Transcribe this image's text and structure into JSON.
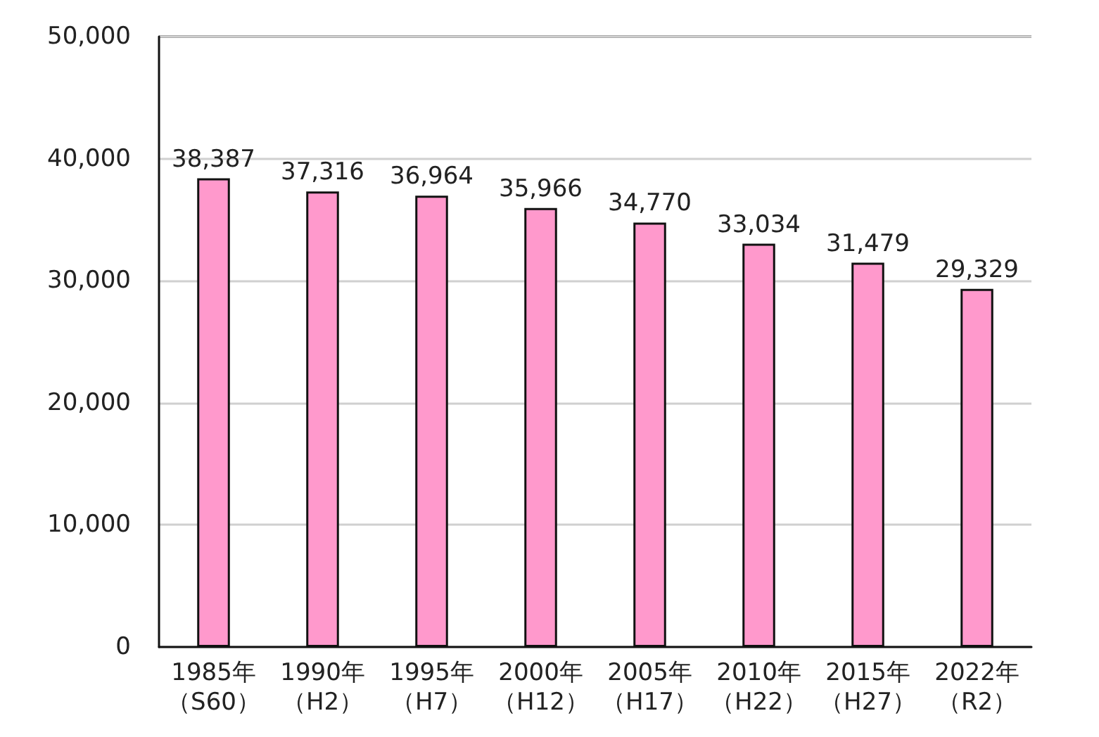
{
  "chart_data": {
    "type": "bar",
    "categories": [
      "1985年（S60）",
      "1990年（H2）",
      "1995年（H7）",
      "2000年（H12）",
      "2005年（H17）",
      "2010年（H22）",
      "2015年（H27）",
      "2022年（R2）"
    ],
    "values": [
      38387,
      37316,
      36964,
      35966,
      34770,
      33034,
      31479,
      29329
    ],
    "value_labels": [
      "38,387",
      "37,316",
      "36,964",
      "35,966",
      "34,770",
      "33,034",
      "31,479",
      "29,329"
    ],
    "color": "#ff99cc",
    "ylim": [
      0,
      50000
    ],
    "yticks": [
      {
        "value": 0,
        "label": "0"
      },
      {
        "value": 10000,
        "label": "10,000"
      },
      {
        "value": 20000,
        "label": "20,000"
      },
      {
        "value": 30000,
        "label": "30,000"
      },
      {
        "value": 40000,
        "label": "40,000"
      },
      {
        "value": 50000,
        "label": "50,000"
      }
    ],
    "grid": "y"
  }
}
